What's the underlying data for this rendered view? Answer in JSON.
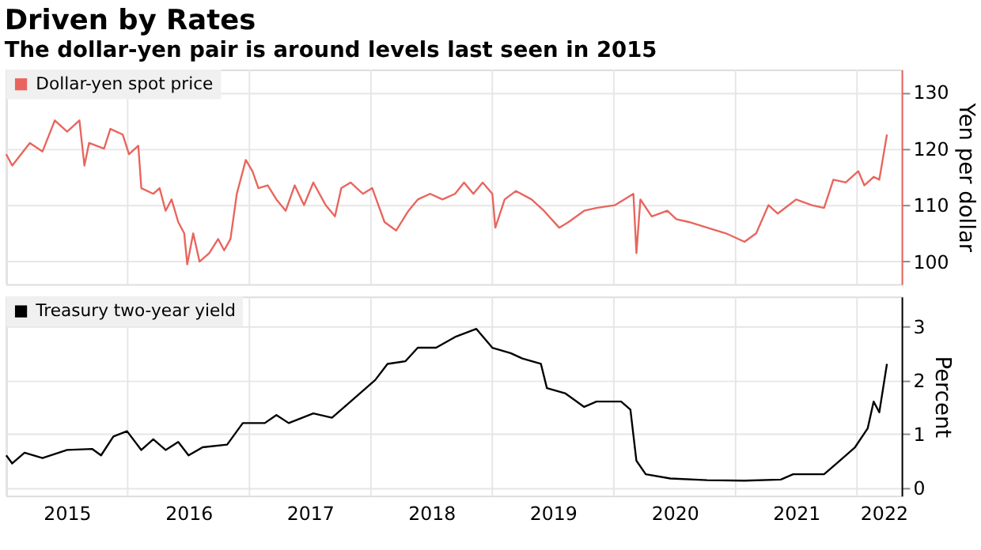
{
  "chart_data": [
    {
      "type": "line",
      "title": "Driven by Rates",
      "subtitle": "The dollar-yen pair is around levels last seen in 2015",
      "ylabel": "Yen per dollar",
      "x": [
        "2015-01-01",
        "2015-01-19",
        "2015-03-13",
        "2015-04-20",
        "2015-05-27",
        "2015-07-03",
        "2015-08-09",
        "2015-08-24",
        "2015-09-07",
        "2015-10-22",
        "2015-11-10",
        "2015-12-17",
        "2016-01-05",
        "2016-02-02",
        "2016-02-11",
        "2016-03-18",
        "2016-04-06",
        "2016-04-24",
        "2016-05-12",
        "2016-06-01",
        "2016-06-19",
        "2016-06-28",
        "2016-07-16",
        "2016-08-04",
        "2016-09-02",
        "2016-09-29",
        "2016-10-17",
        "2016-11-05",
        "2016-11-24",
        "2016-12-21",
        "2017-01-10",
        "2017-01-28",
        "2017-02-25",
        "2017-03-23",
        "2017-04-20",
        "2017-05-17",
        "2017-06-14",
        "2017-07-12",
        "2017-08-18",
        "2017-09-15",
        "2017-10-04",
        "2017-11-01",
        "2017-12-08",
        "2018-01-05",
        "2018-02-11",
        "2018-03-18",
        "2018-04-24",
        "2018-05-22",
        "2018-06-28",
        "2018-08-04",
        "2018-09-11",
        "2018-10-08",
        "2018-11-05",
        "2018-12-03",
        "2019-01-01",
        "2019-01-10",
        "2019-02-07",
        "2019-03-13",
        "2019-04-29",
        "2019-06-05",
        "2019-07-21",
        "2019-08-18",
        "2019-10-04",
        "2019-11-10",
        "2020-01-05",
        "2020-02-29",
        "2020-03-09",
        "2020-03-21",
        "2020-04-24",
        "2020-06-10",
        "2020-07-07",
        "2020-08-14",
        "2020-10-08",
        "2020-12-03",
        "2021-01-28",
        "2021-03-04",
        "2021-04-10",
        "2021-05-08",
        "2021-07-02",
        "2021-08-18",
        "2021-09-24",
        "2021-10-22",
        "2021-11-28",
        "2022-01-05",
        "2022-01-23",
        "2022-02-20",
        "2022-03-09",
        "2022-04-01"
      ],
      "series": [
        {
          "name": "Dollar-yen spot price",
          "color": "#e8655d",
          "values": [
            119,
            117,
            121,
            119.5,
            125,
            123,
            125,
            117,
            121,
            120,
            123.5,
            122.5,
            119,
            120.5,
            113,
            112,
            113,
            109,
            111,
            107,
            105,
            99.5,
            105,
            100,
            101.5,
            104,
            102,
            104,
            112,
            118,
            116,
            113,
            113.5,
            111,
            109,
            113.5,
            110,
            114,
            110,
            108,
            113,
            114,
            112,
            113,
            107,
            105.5,
            109,
            111,
            112,
            111,
            112,
            114,
            112,
            114,
            112,
            106,
            111,
            112.5,
            111,
            109,
            106,
            107,
            109,
            109.5,
            110,
            112,
            101.5,
            111,
            108,
            109,
            107.5,
            107,
            106,
            105,
            103.5,
            105,
            110,
            108.5,
            111,
            110,
            109.5,
            114.5,
            114,
            116,
            113.5,
            115,
            114.5,
            122.5
          ]
        }
      ],
      "xlim": [
        "2015-01-01",
        "2022-05-15"
      ],
      "xticks": [
        {
          "value": "2015-01-01",
          "label": null
        },
        {
          "value": "2016-01-01",
          "label": null
        },
        {
          "value": "2017-01-01",
          "label": null
        },
        {
          "value": "2018-01-01",
          "label": null
        },
        {
          "value": "2019-01-01",
          "label": null
        },
        {
          "value": "2020-01-01",
          "label": null
        },
        {
          "value": "2021-01-01",
          "label": null
        },
        {
          "value": "2022-01-01",
          "label": null
        }
      ],
      "ylim": [
        96,
        134
      ],
      "yticks": [
        100,
        110,
        120,
        130
      ],
      "grid": true,
      "legend": "top left",
      "tick_labels": "y"
    },
    {
      "type": "line",
      "ylabel": "Percent",
      "x": [
        "2015-01-01",
        "2015-01-19",
        "2015-02-25",
        "2015-04-20",
        "2015-07-03",
        "2015-09-16",
        "2015-10-13",
        "2015-11-19",
        "2015-12-30",
        "2016-02-11",
        "2016-03-18",
        "2016-04-24",
        "2016-06-01",
        "2016-07-02",
        "2016-08-13",
        "2016-10-26",
        "2016-12-12",
        "2017-02-16",
        "2017-03-23",
        "2017-04-29",
        "2017-07-12",
        "2017-09-06",
        "2017-11-01",
        "2018-01-14",
        "2018-02-20",
        "2018-04-15",
        "2018-05-22",
        "2018-07-16",
        "2018-09-11",
        "2018-11-14",
        "2019-01-01",
        "2019-02-25",
        "2019-04-01",
        "2019-05-27",
        "2019-06-14",
        "2019-08-09",
        "2019-10-04",
        "2019-11-10",
        "2020-01-23",
        "2020-02-20",
        "2020-03-09",
        "2020-04-06",
        "2020-06-19",
        "2020-10-08",
        "2021-01-28",
        "2021-05-17",
        "2021-06-23",
        "2021-09-24",
        "2021-11-01",
        "2021-12-26",
        "2022-02-02",
        "2022-02-20",
        "2022-03-09",
        "2022-04-01"
      ],
      "series": [
        {
          "name": "Treasury two-year yield",
          "color": "#000000",
          "values": [
            0.6,
            0.45,
            0.65,
            0.55,
            0.7,
            0.72,
            0.6,
            0.95,
            1.05,
            0.7,
            0.9,
            0.7,
            0.85,
            0.6,
            0.75,
            0.8,
            1.2,
            1.2,
            1.35,
            1.2,
            1.38,
            1.3,
            1.6,
            2.0,
            2.3,
            2.35,
            2.6,
            2.6,
            2.8,
            2.95,
            2.6,
            2.5,
            2.4,
            2.3,
            1.85,
            1.75,
            1.5,
            1.6,
            1.6,
            1.45,
            0.5,
            0.25,
            0.17,
            0.14,
            0.13,
            0.15,
            0.25,
            0.25,
            0.45,
            0.75,
            1.1,
            1.6,
            1.4,
            2.3
          ]
        }
      ],
      "xlim": [
        "2015-01-01",
        "2022-05-15"
      ],
      "xticks": [
        {
          "value": "2015-01-01",
          "label": null
        },
        {
          "value": "2015-07-02",
          "label": "2015"
        },
        {
          "value": "2016-01-01",
          "label": null
        },
        {
          "value": "2016-07-02",
          "label": "2016"
        },
        {
          "value": "2017-01-01",
          "label": null
        },
        {
          "value": "2017-07-02",
          "label": "2017"
        },
        {
          "value": "2018-01-01",
          "label": null
        },
        {
          "value": "2018-07-02",
          "label": "2018"
        },
        {
          "value": "2019-01-01",
          "label": null
        },
        {
          "value": "2019-07-02",
          "label": "2019"
        },
        {
          "value": "2020-01-01",
          "label": null
        },
        {
          "value": "2020-07-02",
          "label": "2020"
        },
        {
          "value": "2021-01-01",
          "label": null
        },
        {
          "value": "2021-07-02",
          "label": "2021"
        },
        {
          "value": "2022-01-01",
          "label": null
        },
        {
          "value": "2022-03-22",
          "label": "2022"
        }
      ],
      "ylim": [
        -0.15,
        3.55
      ],
      "yticks": [
        0,
        1,
        2,
        3
      ],
      "grid": true,
      "legend": "top left"
    }
  ]
}
